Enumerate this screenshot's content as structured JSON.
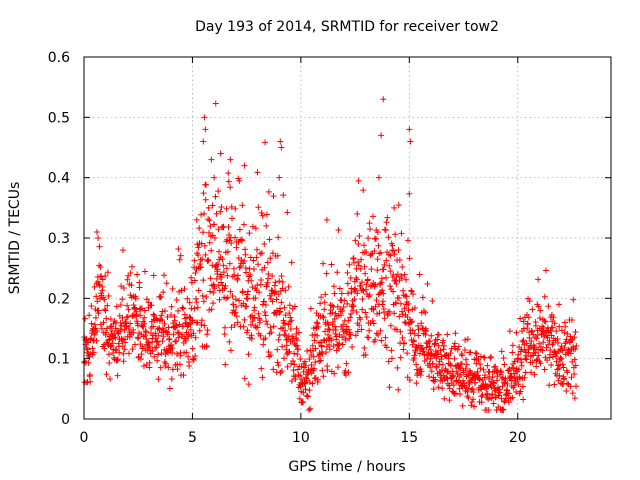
{
  "chart_data": {
    "type": "scatter",
    "title": "Day 193 of 2014, SRMTID for receiver tow2",
    "xlabel": "GPS time / hours",
    "ylabel": "SRMTID / TECUs",
    "xlim": [
      0,
      24.3
    ],
    "ylim": [
      0,
      0.6
    ],
    "x_ticks": [
      0,
      5,
      10,
      15,
      20
    ],
    "x_tick_labels": [
      "0",
      "5",
      "10",
      "15",
      "20"
    ],
    "y_ticks": [
      0,
      0.1,
      0.2,
      0.3,
      0.4,
      0.5,
      0.6
    ],
    "y_tick_labels": [
      "0",
      "0.1",
      "0.2",
      "0.3",
      "0.4",
      "0.5",
      "0.6"
    ],
    "grid": true,
    "marker": "plus",
    "color": "#ff0000",
    "series": [
      {
        "name": "SRMTID",
        "x_range": [
          0,
          22.7
        ],
        "points_per_hour": 80,
        "baseline": [
          [
            0.0,
            0.11
          ],
          [
            0.5,
            0.14
          ],
          [
            0.7,
            0.22
          ],
          [
            1.0,
            0.14
          ],
          [
            1.5,
            0.12
          ],
          [
            2.0,
            0.17
          ],
          [
            2.5,
            0.15
          ],
          [
            3.0,
            0.13
          ],
          [
            3.5,
            0.14
          ],
          [
            4.0,
            0.13
          ],
          [
            4.5,
            0.15
          ],
          [
            5.0,
            0.17
          ],
          [
            5.5,
            0.24
          ],
          [
            6.0,
            0.26
          ],
          [
            6.5,
            0.24
          ],
          [
            7.0,
            0.25
          ],
          [
            7.5,
            0.22
          ],
          [
            8.0,
            0.2
          ],
          [
            8.5,
            0.19
          ],
          [
            9.0,
            0.18
          ],
          [
            9.5,
            0.15
          ],
          [
            10.0,
            0.07
          ],
          [
            10.3,
            0.06
          ],
          [
            10.6,
            0.11
          ],
          [
            11.0,
            0.14
          ],
          [
            11.5,
            0.15
          ],
          [
            12.0,
            0.15
          ],
          [
            12.5,
            0.2
          ],
          [
            13.0,
            0.22
          ],
          [
            13.5,
            0.21
          ],
          [
            14.0,
            0.2
          ],
          [
            14.5,
            0.21
          ],
          [
            15.0,
            0.17
          ],
          [
            15.3,
            0.12
          ],
          [
            16.0,
            0.1
          ],
          [
            17.0,
            0.08
          ],
          [
            18.0,
            0.07
          ],
          [
            19.0,
            0.05
          ],
          [
            19.5,
            0.06
          ],
          [
            20.0,
            0.07
          ],
          [
            20.5,
            0.12
          ],
          [
            21.0,
            0.14
          ],
          [
            21.5,
            0.12
          ],
          [
            22.0,
            0.1
          ],
          [
            22.7,
            0.11
          ]
        ],
        "scatter_amplitude": [
          [
            0.0,
            0.05
          ],
          [
            5.0,
            0.06
          ],
          [
            5.5,
            0.12
          ],
          [
            8.0,
            0.1
          ],
          [
            9.5,
            0.07
          ],
          [
            10.2,
            0.04
          ],
          [
            11.0,
            0.06
          ],
          [
            12.5,
            0.08
          ],
          [
            14.5,
            0.1
          ],
          [
            15.3,
            0.05
          ],
          [
            17.0,
            0.04
          ],
          [
            19.0,
            0.035
          ],
          [
            20.5,
            0.05
          ],
          [
            22.7,
            0.05
          ]
        ],
        "spikes": [
          [
            0.6,
            0.31
          ],
          [
            0.65,
            0.3
          ],
          [
            1.8,
            0.28
          ],
          [
            5.55,
            0.5
          ],
          [
            5.6,
            0.48
          ],
          [
            5.5,
            0.46
          ],
          [
            6.3,
            0.44
          ],
          [
            6.75,
            0.43
          ],
          [
            7.4,
            0.42
          ],
          [
            9.05,
            0.46
          ],
          [
            9.1,
            0.45
          ],
          [
            9.0,
            0.4
          ],
          [
            11.2,
            0.33
          ],
          [
            12.6,
            0.34
          ],
          [
            13.6,
            0.4
          ],
          [
            13.8,
            0.53
          ],
          [
            13.7,
            0.47
          ],
          [
            14.3,
            0.35
          ],
          [
            15.0,
            0.48
          ],
          [
            15.05,
            0.46
          ],
          [
            20.9,
            0.19
          ],
          [
            21.9,
            0.19
          ],
          [
            5.2,
            0.33
          ],
          [
            6.0,
            0.4
          ],
          [
            8.4,
            0.32
          ]
        ]
      }
    ]
  }
}
